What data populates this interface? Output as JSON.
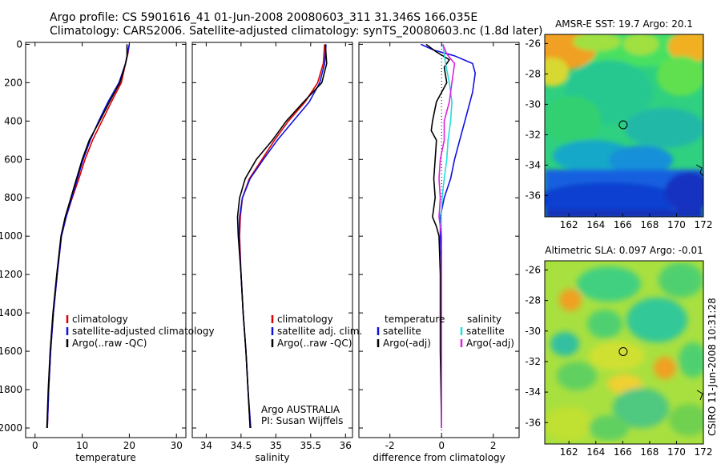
{
  "title": {
    "line1": "Argo profile: CS 5901616_41 01-Jun-2008 20080603_311 31.346S 166.035E",
    "line2": "Climatology: CARS2006. Satellite-adjusted climatology: synTS_20080603.nc (1.8d later)"
  },
  "side_label": "CSIRO 11-Jun-2008 10:31:28",
  "colors": {
    "red": "#dd0000",
    "blue": "#1010e0",
    "black": "#000000",
    "cyan": "#22dddd",
    "magenta": "#dd22dd"
  },
  "chart_data": [
    {
      "type": "line",
      "name": "temperature-profile",
      "xlabel": "temperature",
      "ylabel": "",
      "xlim": [
        -2,
        32
      ],
      "ylim": [
        2050,
        -10
      ],
      "y_reversed": true,
      "xticks": [
        0,
        10,
        20,
        30
      ],
      "yticks": [
        0,
        200,
        400,
        600,
        800,
        1000,
        1200,
        1400,
        1600,
        1800,
        2000
      ],
      "legend": [
        "climatology",
        "satellite-adjusted climatology",
        "Argo(..raw -QC)"
      ],
      "series": [
        {
          "name": "climatology",
          "color": "red",
          "points": [
            [
              20.0,
              0
            ],
            [
              19.7,
              50
            ],
            [
              19.2,
              100
            ],
            [
              18.3,
              200
            ],
            [
              16.2,
              300
            ],
            [
              14.2,
              400
            ],
            [
              12.2,
              500
            ],
            [
              10.6,
              600
            ],
            [
              9.3,
              700
            ],
            [
              7.9,
              800
            ],
            [
              6.6,
              900
            ],
            [
              5.6,
              1000
            ],
            [
              4.7,
              1200
            ],
            [
              3.9,
              1400
            ],
            [
              3.3,
              1600
            ],
            [
              2.9,
              1800
            ],
            [
              2.6,
              2000
            ]
          ]
        },
        {
          "name": "satellite-adjusted climatology",
          "color": "blue",
          "points": [
            [
              20.0,
              0
            ],
            [
              19.6,
              50
            ],
            [
              19.2,
              100
            ],
            [
              17.8,
              200
            ],
            [
              15.5,
              300
            ],
            [
              13.5,
              400
            ],
            [
              11.7,
              500
            ],
            [
              10.2,
              600
            ],
            [
              9.0,
              700
            ],
            [
              7.8,
              800
            ],
            [
              6.6,
              900
            ],
            [
              5.6,
              1000
            ],
            [
              4.7,
              1200
            ],
            [
              3.9,
              1400
            ],
            [
              3.3,
              1600
            ],
            [
              2.9,
              1800
            ],
            [
              2.6,
              2000
            ]
          ]
        },
        {
          "name": "Argo(..raw -QC)",
          "color": "black",
          "points": [
            [
              19.5,
              0
            ],
            [
              19.5,
              60
            ],
            [
              19.2,
              100
            ],
            [
              18.0,
              200
            ],
            [
              15.8,
              300
            ],
            [
              13.7,
              400
            ],
            [
              11.5,
              500
            ],
            [
              10.0,
              600
            ],
            [
              8.8,
              700
            ],
            [
              7.6,
              800
            ],
            [
              6.4,
              900
            ],
            [
              5.5,
              1000
            ],
            [
              4.6,
              1200
            ],
            [
              3.8,
              1400
            ],
            [
              3.2,
              1600
            ],
            [
              2.8,
              1800
            ],
            [
              2.5,
              2000
            ]
          ]
        }
      ]
    },
    {
      "type": "line",
      "name": "salinity-profile",
      "xlabel": "salinity",
      "ylabel": "",
      "xlim": [
        33.8,
        36.1
      ],
      "ylim": [
        2050,
        -10
      ],
      "y_reversed": true,
      "xticks": [
        34,
        34.5,
        35,
        35.5,
        36
      ],
      "legend": [
        "climatology",
        "satellite adj. clim.",
        "Argo(..raw -QC)"
      ],
      "annotation": [
        "Argo AUSTRALIA",
        "PI: Susan Wijffels"
      ],
      "series": [
        {
          "name": "climatology",
          "color": "red",
          "points": [
            [
              35.7,
              0
            ],
            [
              35.68,
              100
            ],
            [
              35.6,
              200
            ],
            [
              35.42,
              300
            ],
            [
              35.18,
              400
            ],
            [
              34.98,
              500
            ],
            [
              34.8,
              600
            ],
            [
              34.62,
              700
            ],
            [
              34.52,
              800
            ],
            [
              34.49,
              900
            ],
            [
              34.48,
              1000
            ],
            [
              34.5,
              1200
            ],
            [
              34.53,
              1400
            ],
            [
              34.57,
              1600
            ],
            [
              34.6,
              1800
            ],
            [
              34.63,
              2000
            ]
          ]
        },
        {
          "name": "satellite adj. clim.",
          "color": "blue",
          "points": [
            [
              35.72,
              0
            ],
            [
              35.7,
              100
            ],
            [
              35.63,
              200
            ],
            [
              35.48,
              300
            ],
            [
              35.25,
              400
            ],
            [
              35.02,
              500
            ],
            [
              34.82,
              600
            ],
            [
              34.63,
              700
            ],
            [
              34.52,
              800
            ],
            [
              34.48,
              900
            ],
            [
              34.47,
              1000
            ],
            [
              34.5,
              1200
            ],
            [
              34.53,
              1400
            ],
            [
              34.57,
              1600
            ],
            [
              34.6,
              1800
            ],
            [
              34.64,
              2000
            ]
          ]
        },
        {
          "name": "Argo(..raw -QC)",
          "color": "black",
          "points": [
            [
              35.71,
              0
            ],
            [
              35.73,
              100
            ],
            [
              35.66,
              200
            ],
            [
              35.4,
              300
            ],
            [
              35.15,
              400
            ],
            [
              34.95,
              500
            ],
            [
              34.72,
              600
            ],
            [
              34.56,
              700
            ],
            [
              34.48,
              800
            ],
            [
              34.45,
              900
            ],
            [
              34.46,
              1000
            ],
            [
              34.5,
              1200
            ],
            [
              34.53,
              1400
            ],
            [
              34.57,
              1600
            ],
            [
              34.6,
              1800
            ],
            [
              34.63,
              2000
            ]
          ]
        }
      ]
    },
    {
      "type": "line",
      "name": "difference-profile",
      "xlabel": "difference from climatology",
      "ylabel": "",
      "xlim": [
        -3.2,
        3.0
      ],
      "ylim": [
        2050,
        -10
      ],
      "y_reversed": true,
      "xticks": [
        -2,
        0,
        2
      ],
      "legend_temperature": [
        "temperature",
        "satellite",
        "Argo(-adj)"
      ],
      "legend_salinity": [
        "salinity",
        "satellite",
        "Argo(-adj)"
      ],
      "series": [
        {
          "name": "temperature satellite",
          "color": "blue",
          "points": [
            [
              -0.8,
              0
            ],
            [
              -0.3,
              30
            ],
            [
              0.5,
              60
            ],
            [
              1.2,
              100
            ],
            [
              1.3,
              150
            ],
            [
              1.2,
              250
            ],
            [
              0.9,
              400
            ],
            [
              0.7,
              500
            ],
            [
              0.5,
              600
            ],
            [
              0.35,
              700
            ],
            [
              0.1,
              800
            ],
            [
              -0.05,
              900
            ],
            [
              -0.05,
              1000
            ],
            [
              0.0,
              1200
            ],
            [
              0.0,
              1600
            ],
            [
              0.0,
              2000
            ]
          ]
        },
        {
          "name": "temperature Argo(-adj)",
          "color": "black",
          "points": [
            [
              -0.6,
              0
            ],
            [
              -0.2,
              40
            ],
            [
              0.3,
              80
            ],
            [
              0.1,
              120
            ],
            [
              0.2,
              200
            ],
            [
              -0.2,
              300
            ],
            [
              -0.35,
              400
            ],
            [
              -0.4,
              450
            ],
            [
              -0.2,
              500
            ],
            [
              -0.25,
              600
            ],
            [
              -0.3,
              700
            ],
            [
              -0.25,
              800
            ],
            [
              -0.35,
              900
            ],
            [
              -0.2,
              950
            ],
            [
              -0.1,
              1000
            ],
            [
              -0.05,
              1200
            ],
            [
              -0.05,
              1600
            ],
            [
              0.0,
              2000
            ]
          ]
        },
        {
          "name": "salinity satellite",
          "color": "cyan",
          "points": [
            [
              0.05,
              0
            ],
            [
              0.15,
              100
            ],
            [
              0.3,
              200
            ],
            [
              0.4,
              300
            ],
            [
              0.35,
              400
            ],
            [
              0.25,
              500
            ],
            [
              0.2,
              600
            ],
            [
              0.1,
              700
            ],
            [
              0.02,
              800
            ],
            [
              -0.02,
              900
            ],
            [
              0.0,
              1000
            ],
            [
              0.0,
              1400
            ],
            [
              0.0,
              2000
            ]
          ]
        },
        {
          "name": "salinity Argo(-adj)",
          "color": "magenta",
          "points": [
            [
              0.05,
              0
            ],
            [
              0.2,
              50
            ],
            [
              0.5,
              100
            ],
            [
              0.4,
              200
            ],
            [
              0.3,
              300
            ],
            [
              0.1,
              400
            ],
            [
              0.1,
              500
            ],
            [
              -0.05,
              600
            ],
            [
              -0.1,
              700
            ],
            [
              -0.05,
              800
            ],
            [
              -0.1,
              900
            ],
            [
              0.0,
              1000
            ],
            [
              0.0,
              1400
            ],
            [
              0.0,
              2000
            ]
          ]
        }
      ]
    },
    {
      "type": "heatmap",
      "name": "sst-map",
      "title": "AMSR-E SST: 19.7 Argo: 20.1",
      "xlim": [
        160.2,
        172
      ],
      "ylim": [
        -37.4,
        -25.4
      ],
      "xticks": [
        162,
        164,
        166,
        168,
        170,
        172
      ],
      "yticks": [
        -26,
        -28,
        -30,
        -32,
        -34,
        -36
      ],
      "argo_location": [
        166.035,
        -31.346
      ]
    },
    {
      "type": "heatmap",
      "name": "sla-map",
      "title": "Altimetric SLA: 0.097 Argo: -0.01",
      "xlim": [
        160.2,
        172
      ],
      "ylim": [
        -37.4,
        -25.4
      ],
      "xticks": [
        162,
        164,
        166,
        168,
        170,
        172
      ],
      "yticks": [
        -26,
        -28,
        -30,
        -32,
        -34,
        -36
      ],
      "argo_location": [
        166.035,
        -31.346
      ]
    }
  ]
}
